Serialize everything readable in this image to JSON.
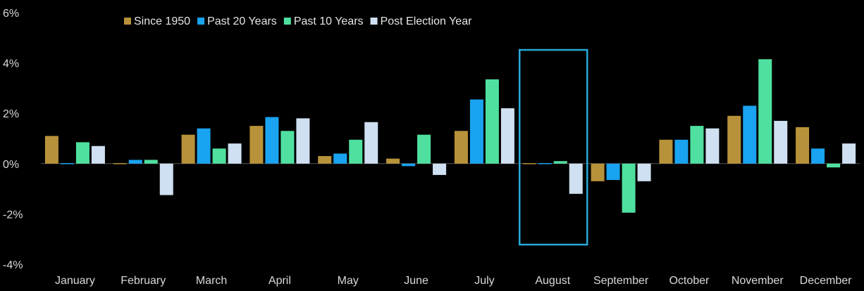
{
  "chart_data": {
    "type": "bar",
    "categories": [
      "January",
      "February",
      "March",
      "April",
      "May",
      "June",
      "July",
      "August",
      "September",
      "October",
      "November",
      "December"
    ],
    "series": [
      {
        "name": "Since 1950",
        "color": "#b8923a",
        "values": [
          1.1,
          0.0,
          1.15,
          1.5,
          0.3,
          0.2,
          1.3,
          0.0,
          -0.7,
          0.95,
          1.9,
          1.45
        ]
      },
      {
        "name": "Past 20 Years",
        "color": "#1aa3f0",
        "values": [
          0.0,
          0.15,
          1.4,
          1.85,
          0.4,
          -0.1,
          2.55,
          0.0,
          -0.65,
          0.95,
          2.3,
          0.6
        ]
      },
      {
        "name": "Past 10 Years",
        "color": "#4fe0a0",
        "values": [
          0.85,
          0.15,
          0.6,
          1.3,
          0.95,
          1.15,
          3.35,
          0.1,
          -1.95,
          1.5,
          4.15,
          -0.15
        ]
      },
      {
        "name": "Post Election Year",
        "color": "#cfe0f2",
        "values": [
          0.7,
          -1.25,
          0.8,
          1.8,
          1.65,
          -0.45,
          2.2,
          -1.2,
          -0.7,
          1.4,
          1.7,
          0.8
        ]
      }
    ],
    "y_ticks": [
      "6%",
      "4%",
      "2%",
      "0%",
      "-2%",
      "-4%"
    ],
    "ylim": [
      -4,
      6
    ],
    "highlight_category": "August",
    "highlight_color": "#29a9d8",
    "legend_position": "top-left",
    "grid": false
  }
}
